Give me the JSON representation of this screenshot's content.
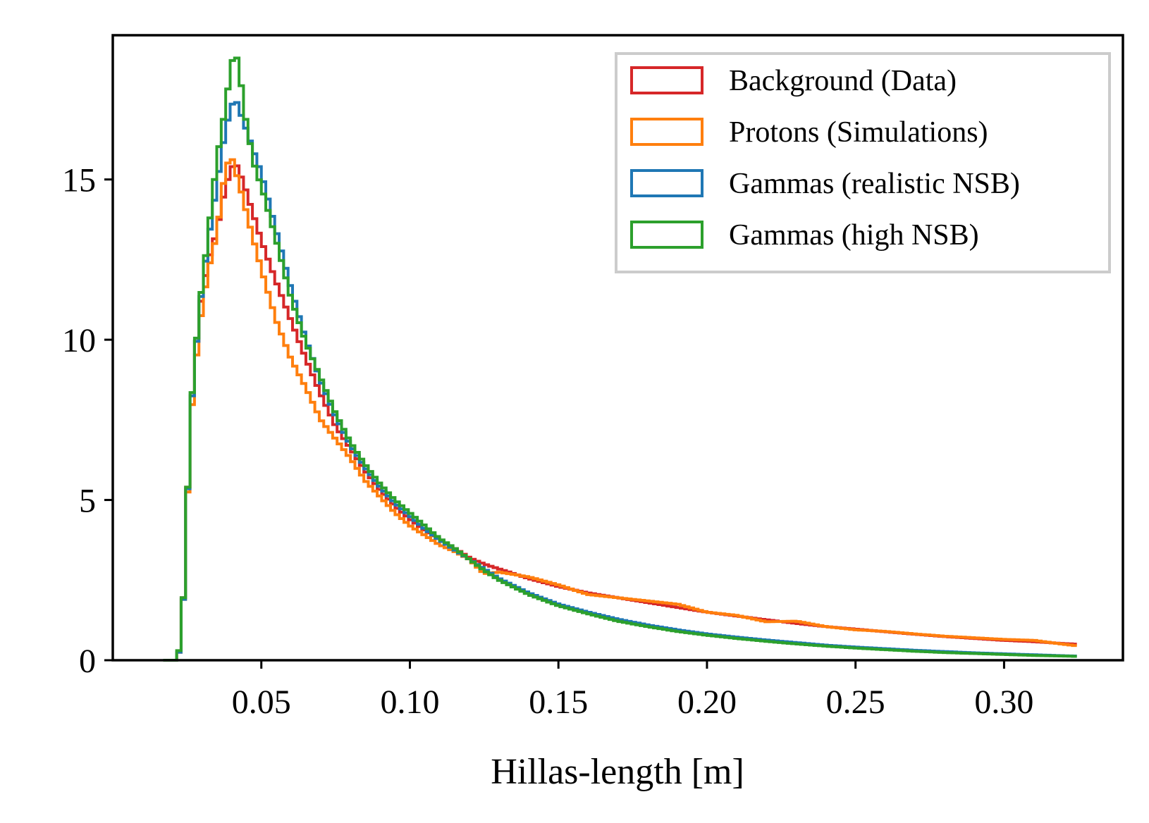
{
  "chart_data": {
    "type": "histogram-step",
    "xlabel": "Hillas-length [m]",
    "ylabel": "",
    "xlim": [
      0.0,
      0.34
    ],
    "ylim": [
      0,
      19.5
    ],
    "xticks": [
      0.05,
      0.1,
      0.15,
      0.2,
      0.25,
      0.3
    ],
    "xtick_labels": [
      "0.05",
      "0.10",
      "0.15",
      "0.20",
      "0.25",
      "0.30"
    ],
    "yticks": [
      0,
      5,
      10,
      15
    ],
    "ytick_labels": [
      "0",
      "5",
      "10",
      "15"
    ],
    "grid": false,
    "legend_position": "top-right",
    "bin_start": 0.017,
    "bin_width": 0.0015,
    "series": [
      {
        "name": "Background (Data)",
        "color": "#d62728",
        "keypoints": [
          [
            0.017,
            0
          ],
          [
            0.0215,
            0
          ],
          [
            0.023,
            0.5
          ],
          [
            0.0245,
            3.4
          ],
          [
            0.026,
            7.4
          ],
          [
            0.029,
            10.8
          ],
          [
            0.032,
            12.4
          ],
          [
            0.035,
            13.4
          ],
          [
            0.038,
            14.8
          ],
          [
            0.041,
            15.6
          ],
          [
            0.044,
            14.9
          ],
          [
            0.047,
            14.0
          ],
          [
            0.05,
            13.1
          ],
          [
            0.055,
            11.8
          ],
          [
            0.06,
            10.6
          ],
          [
            0.065,
            9.4
          ],
          [
            0.07,
            8.3
          ],
          [
            0.075,
            7.3
          ],
          [
            0.08,
            6.6
          ],
          [
            0.085,
            5.9
          ],
          [
            0.09,
            5.3
          ],
          [
            0.095,
            4.8
          ],
          [
            0.1,
            4.4
          ],
          [
            0.105,
            4.05
          ],
          [
            0.11,
            3.75
          ],
          [
            0.115,
            3.5
          ],
          [
            0.12,
            3.2
          ],
          [
            0.125,
            3.0
          ],
          [
            0.13,
            2.85
          ],
          [
            0.14,
            2.55
          ],
          [
            0.15,
            2.3
          ],
          [
            0.16,
            2.1
          ],
          [
            0.17,
            1.95
          ],
          [
            0.18,
            1.8
          ],
          [
            0.19,
            1.65
          ],
          [
            0.2,
            1.5
          ],
          [
            0.21,
            1.38
          ],
          [
            0.22,
            1.26
          ],
          [
            0.23,
            1.15
          ],
          [
            0.24,
            1.05
          ],
          [
            0.25,
            0.97
          ],
          [
            0.26,
            0.89
          ],
          [
            0.27,
            0.81
          ],
          [
            0.28,
            0.74
          ],
          [
            0.29,
            0.68
          ],
          [
            0.3,
            0.62
          ],
          [
            0.31,
            0.58
          ],
          [
            0.32,
            0.52
          ],
          [
            0.3245,
            0.5
          ]
        ]
      },
      {
        "name": "Protons (Simulations)",
        "color": "#ff7f0e",
        "keypoints": [
          [
            0.017,
            0
          ],
          [
            0.0215,
            0
          ],
          [
            0.023,
            0.5
          ],
          [
            0.0245,
            3.3
          ],
          [
            0.026,
            7.2
          ],
          [
            0.029,
            10.3
          ],
          [
            0.032,
            12.1
          ],
          [
            0.035,
            13.3
          ],
          [
            0.038,
            15.4
          ],
          [
            0.04,
            15.7
          ],
          [
            0.043,
            14.7
          ],
          [
            0.046,
            13.6
          ],
          [
            0.05,
            12.2
          ],
          [
            0.055,
            10.6
          ],
          [
            0.06,
            9.4
          ],
          [
            0.065,
            8.5
          ],
          [
            0.07,
            7.5
          ],
          [
            0.075,
            6.9
          ],
          [
            0.08,
            6.3
          ],
          [
            0.085,
            5.6
          ],
          [
            0.09,
            5.1
          ],
          [
            0.095,
            4.6
          ],
          [
            0.1,
            4.2
          ],
          [
            0.105,
            3.9
          ],
          [
            0.11,
            3.6
          ],
          [
            0.115,
            3.4
          ],
          [
            0.12,
            3.15
          ],
          [
            0.125,
            2.7
          ],
          [
            0.13,
            2.75
          ],
          [
            0.14,
            2.6
          ],
          [
            0.15,
            2.35
          ],
          [
            0.16,
            2.05
          ],
          [
            0.17,
            1.95
          ],
          [
            0.18,
            1.85
          ],
          [
            0.19,
            1.75
          ],
          [
            0.2,
            1.5
          ],
          [
            0.21,
            1.4
          ],
          [
            0.22,
            1.2
          ],
          [
            0.23,
            1.22
          ],
          [
            0.24,
            1.05
          ],
          [
            0.25,
            0.95
          ],
          [
            0.26,
            0.9
          ],
          [
            0.27,
            0.82
          ],
          [
            0.28,
            0.75
          ],
          [
            0.29,
            0.7
          ],
          [
            0.3,
            0.65
          ],
          [
            0.31,
            0.62
          ],
          [
            0.32,
            0.5
          ],
          [
            0.3245,
            0.45
          ]
        ]
      },
      {
        "name": "Gammas (realistic NSB)",
        "color": "#1f77b4",
        "keypoints": [
          [
            0.017,
            0
          ],
          [
            0.0215,
            0
          ],
          [
            0.023,
            0.5
          ],
          [
            0.0245,
            3.3
          ],
          [
            0.026,
            7.4
          ],
          [
            0.029,
            10.8
          ],
          [
            0.032,
            13.0
          ],
          [
            0.035,
            14.8
          ],
          [
            0.038,
            16.6
          ],
          [
            0.041,
            17.6
          ],
          [
            0.044,
            16.8
          ],
          [
            0.047,
            16.0
          ],
          [
            0.05,
            15.2
          ],
          [
            0.055,
            13.4
          ],
          [
            0.06,
            11.6
          ],
          [
            0.065,
            10.0
          ],
          [
            0.07,
            8.7
          ],
          [
            0.075,
            7.6
          ],
          [
            0.08,
            6.7
          ],
          [
            0.085,
            6.0
          ],
          [
            0.09,
            5.4
          ],
          [
            0.095,
            4.9
          ],
          [
            0.1,
            4.5
          ],
          [
            0.105,
            4.1
          ],
          [
            0.11,
            3.75
          ],
          [
            0.115,
            3.45
          ],
          [
            0.12,
            3.15
          ],
          [
            0.125,
            2.85
          ],
          [
            0.13,
            2.55
          ],
          [
            0.14,
            2.1
          ],
          [
            0.15,
            1.75
          ],
          [
            0.16,
            1.5
          ],
          [
            0.17,
            1.28
          ],
          [
            0.18,
            1.1
          ],
          [
            0.19,
            0.95
          ],
          [
            0.2,
            0.82
          ],
          [
            0.21,
            0.72
          ],
          [
            0.22,
            0.63
          ],
          [
            0.23,
            0.55
          ],
          [
            0.24,
            0.47
          ],
          [
            0.25,
            0.41
          ],
          [
            0.26,
            0.36
          ],
          [
            0.27,
            0.31
          ],
          [
            0.28,
            0.27
          ],
          [
            0.29,
            0.23
          ],
          [
            0.3,
            0.2
          ],
          [
            0.31,
            0.17
          ],
          [
            0.32,
            0.14
          ],
          [
            0.3245,
            0.13
          ]
        ]
      },
      {
        "name": "Gammas (high NSB)",
        "color": "#2ca02c",
        "keypoints": [
          [
            0.017,
            0
          ],
          [
            0.0215,
            0
          ],
          [
            0.023,
            0.6
          ],
          [
            0.0245,
            3.3
          ],
          [
            0.026,
            7.5
          ],
          [
            0.029,
            10.9
          ],
          [
            0.032,
            13.2
          ],
          [
            0.035,
            15.6
          ],
          [
            0.038,
            17.3
          ],
          [
            0.04,
            18.7
          ],
          [
            0.042,
            18.8
          ],
          [
            0.045,
            16.7
          ],
          [
            0.048,
            15.3
          ],
          [
            0.05,
            14.8
          ],
          [
            0.055,
            13.1
          ],
          [
            0.06,
            11.3
          ],
          [
            0.065,
            9.9
          ],
          [
            0.07,
            8.8
          ],
          [
            0.075,
            7.7
          ],
          [
            0.08,
            6.8
          ],
          [
            0.085,
            6.1
          ],
          [
            0.09,
            5.5
          ],
          [
            0.095,
            5.0
          ],
          [
            0.1,
            4.6
          ],
          [
            0.105,
            4.2
          ],
          [
            0.11,
            3.8
          ],
          [
            0.115,
            3.5
          ],
          [
            0.12,
            3.15
          ],
          [
            0.125,
            2.8
          ],
          [
            0.13,
            2.5
          ],
          [
            0.14,
            2.05
          ],
          [
            0.15,
            1.7
          ],
          [
            0.16,
            1.45
          ],
          [
            0.17,
            1.22
          ],
          [
            0.18,
            1.05
          ],
          [
            0.19,
            0.9
          ],
          [
            0.2,
            0.78
          ],
          [
            0.21,
            0.68
          ],
          [
            0.22,
            0.59
          ],
          [
            0.23,
            0.51
          ],
          [
            0.24,
            0.44
          ],
          [
            0.25,
            0.38
          ],
          [
            0.26,
            0.33
          ],
          [
            0.27,
            0.28
          ],
          [
            0.28,
            0.24
          ],
          [
            0.29,
            0.21
          ],
          [
            0.3,
            0.18
          ],
          [
            0.31,
            0.15
          ],
          [
            0.32,
            0.13
          ],
          [
            0.3245,
            0.12
          ]
        ]
      }
    ]
  }
}
